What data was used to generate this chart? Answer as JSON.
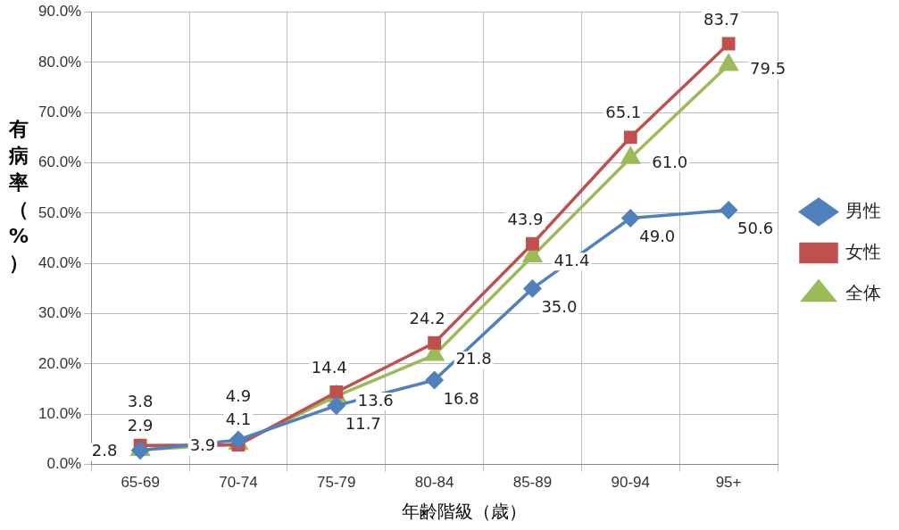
{
  "chart_data": {
    "type": "line",
    "xlabel": "年齢階級（歳）",
    "ylabel": "有病率（%）",
    "categories": [
      "65-69",
      "70-74",
      "75-79",
      "80-84",
      "85-89",
      "90-94",
      "95+"
    ],
    "series": [
      {
        "name": "男性",
        "color": "#4f81bd",
        "marker": "diamond",
        "values": [
          2.8,
          4.9,
          11.7,
          16.8,
          35.0,
          49.0,
          50.6
        ],
        "value_labels": [
          "2.8",
          "4.9",
          "11.7",
          "16.8",
          "35.0",
          "49.0",
          "50.6"
        ]
      },
      {
        "name": "女性",
        "color": "#c0504d",
        "marker": "square",
        "values": [
          3.8,
          3.9,
          14.4,
          24.2,
          43.9,
          65.1,
          83.7
        ],
        "value_labels": [
          "3.8",
          "3.9",
          "14.4",
          "24.2",
          "43.9",
          "65.1",
          "83.7"
        ]
      },
      {
        "name": "全体",
        "color": "#9bbb59",
        "marker": "triangle",
        "values": [
          2.9,
          4.1,
          13.6,
          21.8,
          41.4,
          61.0,
          79.5
        ],
        "value_labels": [
          "2.9",
          "4.1",
          "13.6",
          "21.8",
          "41.4",
          "61.0",
          "79.5"
        ]
      }
    ],
    "ylim": [
      0,
      90
    ],
    "yticks": [
      {
        "value": 0,
        "label": "0.0%"
      },
      {
        "value": 10,
        "label": "10.0%"
      },
      {
        "value": 20,
        "label": "20.0%"
      },
      {
        "value": 30,
        "label": "30.0%"
      },
      {
        "value": 40,
        "label": "40.0%"
      },
      {
        "value": 50,
        "label": "50.0%"
      },
      {
        "value": 60,
        "label": "60.0%"
      },
      {
        "value": 70,
        "label": "70.0%"
      },
      {
        "value": 80,
        "label": "80.0%"
      },
      {
        "value": 90,
        "label": "90.0%"
      }
    ],
    "grid": true,
    "legend": "right",
    "line_style": "solid"
  }
}
